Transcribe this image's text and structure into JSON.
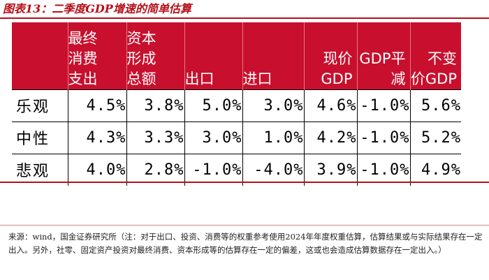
{
  "title": "图表13：二季度GDP增速的简单估算",
  "table": {
    "headers": [
      "最终消费支出",
      "资本形成总额",
      "出口",
      "进口",
      "现价GDP",
      "GDP平减",
      "不变价GDP"
    ],
    "header_lines": [
      [
        "最终",
        "消费",
        "支出"
      ],
      [
        "资本",
        "形成",
        "总额"
      ],
      [
        "出口"
      ],
      [
        "进口"
      ],
      [
        "现价",
        "GDP"
      ],
      [
        "GDP平",
        "减"
      ],
      [
        "不变",
        "价GDP"
      ]
    ],
    "rows": [
      {
        "label": "乐观",
        "values": [
          "4.5%",
          "3.8%",
          "5.0%",
          "3.0%",
          "4.6%",
          "-1.0%",
          "5.6%"
        ]
      },
      {
        "label": "中性",
        "values": [
          "4.3%",
          "3.3%",
          "3.0%",
          "1.0%",
          "4.2%",
          "-1.0%",
          "5.2%"
        ]
      },
      {
        "label": "悲观",
        "values": [
          "4.0%",
          "2.8%",
          "-1.0%",
          "-4.0%",
          "3.9%",
          "-1.0%",
          "4.9%"
        ]
      }
    ]
  },
  "source": "来源：wind，国金证券研究所（注：对于出口、投资、消费等的权重参考使用2024年年度权重估算，估算结果或与实际结果存在一定出入。另外，社零、固定资产投资对最终消费、资本形成等的估算存在一定的偏差，这或也会造成估算数据存在一定出入。）",
  "colors": {
    "accent": "#c8102e",
    "title": "#b50f18"
  }
}
